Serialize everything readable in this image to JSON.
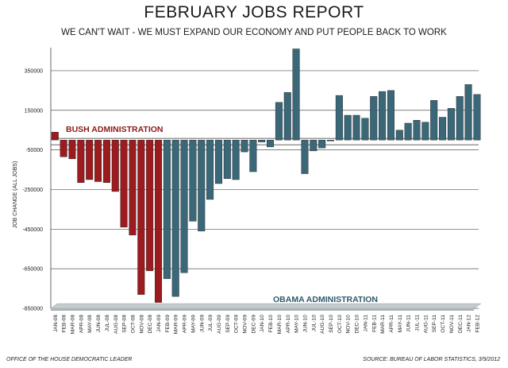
{
  "header": {
    "title": "FEBRUARY JOBS REPORT",
    "subtitle": "WE CAN'T WAIT - WE MUST EXPAND OUR ECONOMY AND PUT PEOPLE BACK TO WORK"
  },
  "footer": {
    "left": "OFFICE OF THE HOUSE DEMOCRATIC LEADER",
    "right": "SOURCE: BUREAU OF LABOR STATISTICS, 3/9/2012"
  },
  "colors": {
    "bush": "#9b1b1e",
    "obama": "#3a6878",
    "label_bush": "#8b1a1a",
    "label_obama": "#2d5a6b",
    "floor": "#c5cbcd"
  },
  "chart_data": {
    "type": "bar",
    "title": "FEBRUARY JOBS REPORT",
    "subtitle": "WE CAN'T WAIT - WE MUST EXPAND OUR ECONOMY AND PUT PEOPLE BACK TO WORK",
    "ylabel": "JOB CHANGE (ALL JOBS)",
    "xlabel": "",
    "ylim": [
      -850000,
      450000
    ],
    "yticks": [
      350000,
      150000,
      -50000,
      -250000,
      -450000,
      -650000,
      -850000
    ],
    "ytick_labels": [
      "350000",
      "150000",
      "-50000",
      "-250000",
      "-450000",
      "-650000",
      "-850000"
    ],
    "grid": true,
    "categories": [
      "JAN-08",
      "FEB-08",
      "MAR-08",
      "APR-08",
      "MAY-08",
      "JUN-08",
      "JUL-08",
      "AUG-08",
      "SEP-08",
      "OCT-08",
      "NOV-08",
      "DEC-08",
      "JAN-09",
      "FEB-09",
      "MAR-09",
      "APR-09",
      "MAY-09",
      "JUN-09",
      "JUL-09",
      "AUG-09",
      "SEP-09",
      "OCT-09",
      "NOV-09",
      "DEC-09",
      "JAN-10",
      "FEB-10",
      "MAR-10",
      "APR-10",
      "MAY-10",
      "JUN-10",
      "JUL-10",
      "AUG-10",
      "SEP-10",
      "OCT-10",
      "NOV-10",
      "DEC-10",
      "JAN-11",
      "FEB-11",
      "MAR-11",
      "APR-11",
      "MAY-11",
      "JUN-11",
      "JUL-11",
      "AUG-11",
      "SEP-11",
      "OCT-11",
      "NOV-11",
      "DEC-11",
      "JAN-12",
      "FEB-12"
    ],
    "values": [
      40000,
      -85000,
      -95000,
      -215000,
      -200000,
      -210000,
      -215000,
      -260000,
      -440000,
      -480000,
      -780000,
      -660000,
      -820000,
      -700000,
      -790000,
      -670000,
      -410000,
      -460000,
      -300000,
      -220000,
      -195000,
      -200000,
      -60000,
      -160000,
      -10000,
      -35000,
      190000,
      240000,
      460000,
      -170000,
      -55000,
      -40000,
      -5000,
      225000,
      125000,
      125000,
      110000,
      220000,
      245000,
      250000,
      50000,
      85000,
      100000,
      90000,
      200000,
      115000,
      160000,
      220000,
      280000,
      230000
    ],
    "series": [
      {
        "name": "BUSH ADMINISTRATION",
        "start_index": 0,
        "end_index": 12
      },
      {
        "name": "OBAMA ADMINISTRATION",
        "start_index": 13,
        "end_index": 49
      }
    ]
  }
}
